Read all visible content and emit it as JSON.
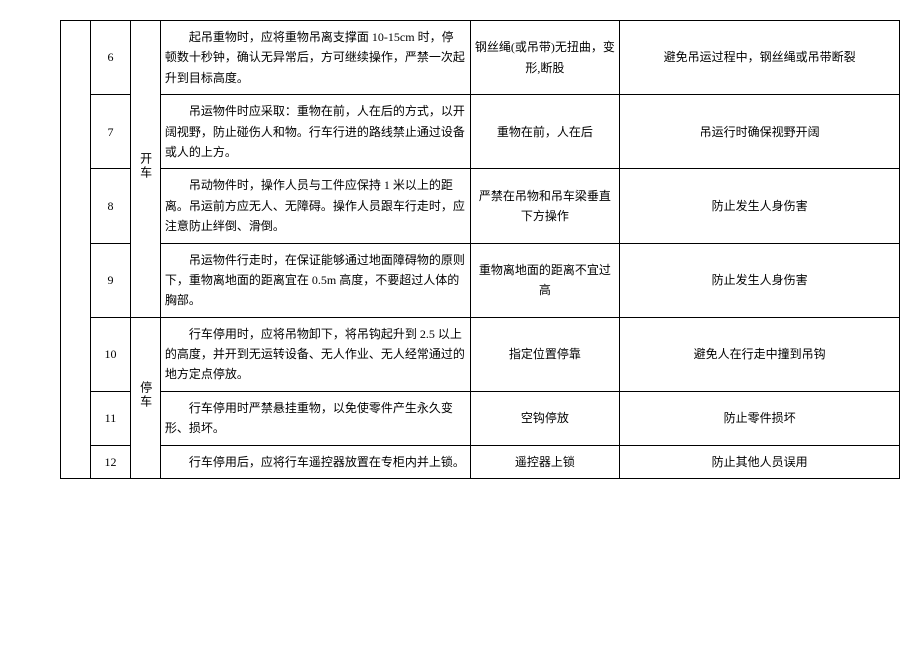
{
  "rows": [
    {
      "num": "6",
      "phase": "",
      "desc": "起吊重物时，应将重物吊离支撑面 10-15cm 时，停顿数十秒钟，确认无异常后，方可继续操作，严禁一次起升到目标高度。",
      "key": "钢丝绳(或吊带)无扭曲，变形,断股",
      "reason": "避免吊运过程中，钢丝绳或吊带断裂"
    },
    {
      "num": "7",
      "phase": "",
      "desc": "吊运物件时应采取：重物在前，人在后的方式，以开阔视野，防止碰伤人和物。行车行进的路线禁止通过设备或人的上方。",
      "key": "重物在前，人在后",
      "reason": "吊运行时确保视野开阔"
    },
    {
      "num": "8",
      "phase": "开车",
      "desc": "吊动物件时，操作人员与工件应保持 1 米以上的距离。吊运前方应无人、无障碍。操作人员跟车行走时，应注意防止绊倒、滑倒。",
      "key": "严禁在吊物和吊车梁垂直下方操作",
      "reason": "防止发生人身伤害"
    },
    {
      "num": "9",
      "phase": "",
      "desc": "吊运物件行走时，在保证能够通过地面障碍物的原则下，重物离地面的距离宜在 0.5m 高度，不要超过人体的胸部。",
      "key": "重物离地面的距离不宜过高",
      "reason": "防止发生人身伤害"
    },
    {
      "num": "10",
      "phase": "",
      "desc": "行车停用时，应将吊物卸下，将吊钩起升到 2.5 以上的高度，并开到无运转设备、无人作业、无人经常通过的地方定点停放。",
      "key": "指定位置停靠",
      "reason": "避免人在行走中撞到吊钩"
    },
    {
      "num": "11",
      "phase": "停车",
      "desc": "行车停用时严禁悬挂重物，以免使零件产生永久变形、损坏。",
      "key": "空钩停放",
      "reason": "防止零件损坏"
    },
    {
      "num": "12",
      "phase": "",
      "desc": "行车停用后，应将行车遥控器放置在专柜内并上锁。",
      "key": "遥控器上锁",
      "reason": "防止其他人员误用"
    }
  ],
  "phases": [
    {
      "text": "开车",
      "span": 4
    },
    {
      "text": "停车",
      "span": 3
    }
  ]
}
